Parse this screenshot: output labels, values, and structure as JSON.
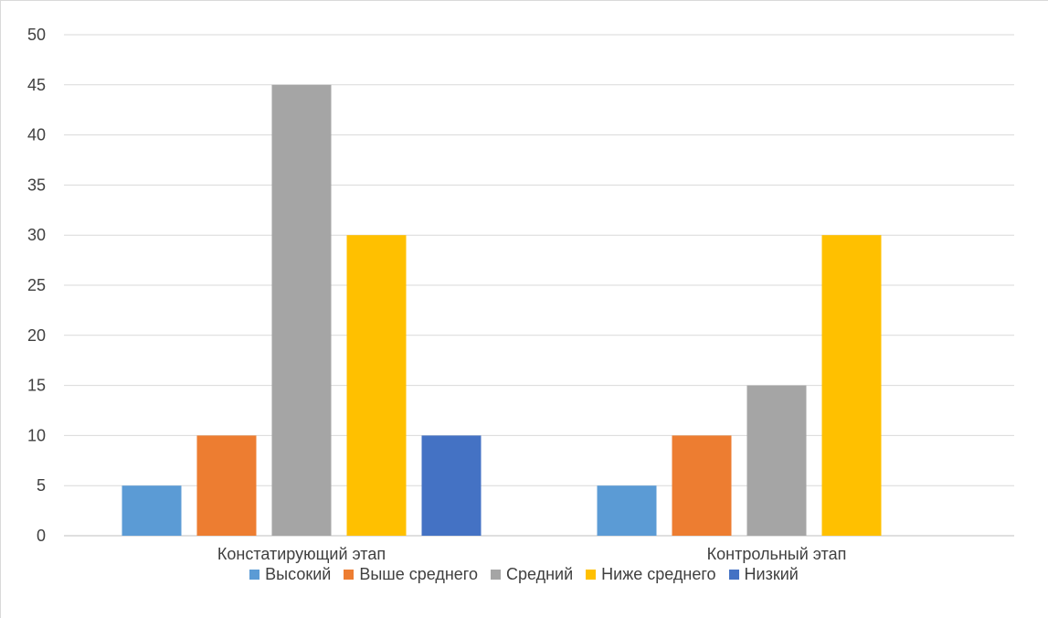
{
  "chart_data": {
    "type": "bar",
    "categories": [
      "Констатирующий этап",
      "Контрольный этап"
    ],
    "series": [
      {
        "name": "Высокий",
        "color": "#5B9BD5",
        "values": [
          5,
          5
        ]
      },
      {
        "name": "Выше среднего",
        "color": "#ED7D31",
        "values": [
          10,
          10
        ]
      },
      {
        "name": "Средний",
        "color": "#A5A5A5",
        "values": [
          45,
          15
        ]
      },
      {
        "name": "Ниже среднего",
        "color": "#FFC000",
        "values": [
          30,
          30
        ]
      },
      {
        "name": "Низкий",
        "color": "#4472C4",
        "values": [
          10,
          0
        ]
      }
    ],
    "ylim": [
      0,
      50
    ],
    "yticks": [
      "0",
      "5",
      "10",
      "15",
      "20",
      "25",
      "30",
      "35",
      "40",
      "45",
      "50"
    ],
    "grid": true,
    "legend_position": "bottom",
    "title": "",
    "xlabel": "",
    "ylabel": ""
  }
}
